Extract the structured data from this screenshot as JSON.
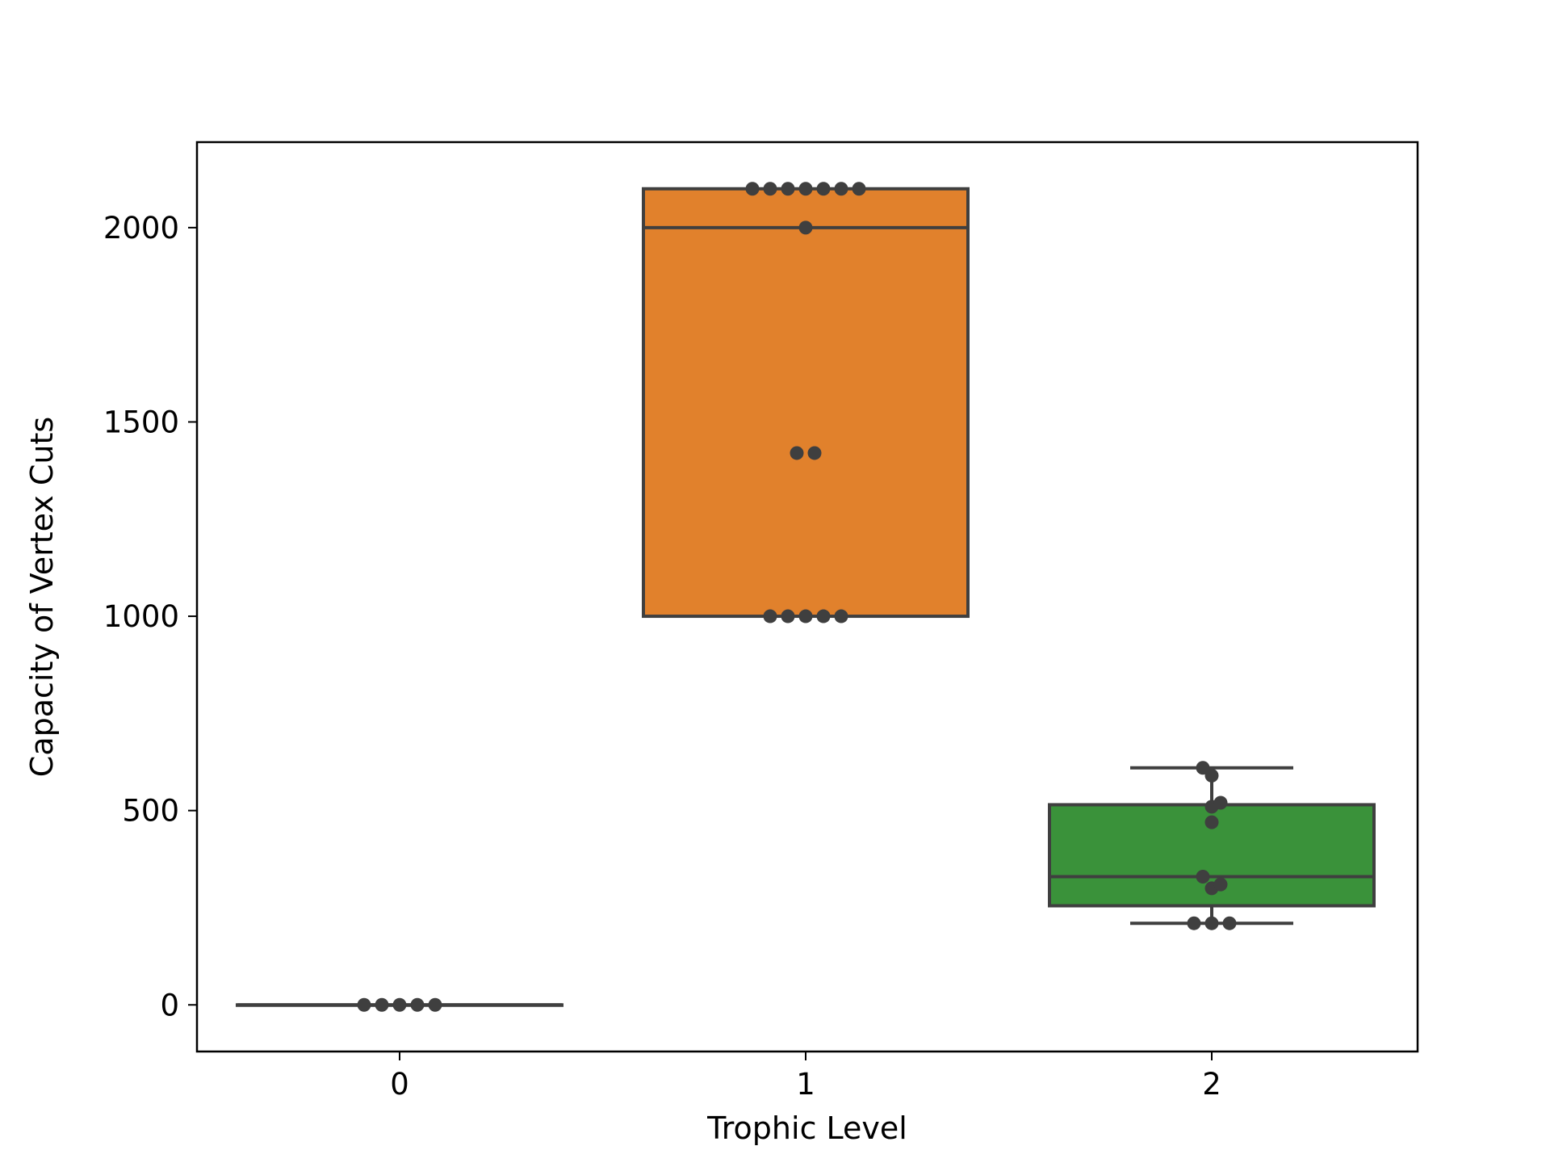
{
  "chart_data": {
    "type": "box",
    "title": "",
    "xlabel": "Trophic Level",
    "ylabel": "Capacity of Vertex Cuts",
    "categories": [
      "0",
      "1",
      "2"
    ],
    "ylim": [
      -120,
      2220
    ],
    "yticks": [
      0,
      500,
      1000,
      1500,
      2000
    ],
    "grid": false,
    "legend": "none",
    "boxes": [
      {
        "category": "0",
        "color": "#1f77b4",
        "q1": 0,
        "median": 0,
        "q3": 0,
        "whisker_low": 0,
        "whisker_high": 0
      },
      {
        "category": "1",
        "color": "#e1812c",
        "q1": 1000,
        "median": 2000,
        "q3": 2100,
        "whisker_low": 1000,
        "whisker_high": 2100
      },
      {
        "category": "2",
        "color": "#3a923a",
        "q1": 255,
        "median": 330,
        "q3": 515,
        "whisker_low": 210,
        "whisker_high": 610
      }
    ],
    "points": [
      {
        "category": "0",
        "values": [
          0,
          0,
          0,
          0,
          0
        ]
      },
      {
        "category": "1",
        "values": [
          2100,
          2100,
          2100,
          2100,
          2100,
          2100,
          2100,
          2000,
          1420,
          1420,
          1000,
          1000,
          1000,
          1000,
          1000
        ]
      },
      {
        "category": "2",
        "values": [
          610,
          590,
          510,
          520,
          470,
          330,
          310,
          300,
          210,
          210,
          210
        ]
      }
    ],
    "point_color": "#3f3f3f",
    "line_color": "#3f3f3f"
  }
}
